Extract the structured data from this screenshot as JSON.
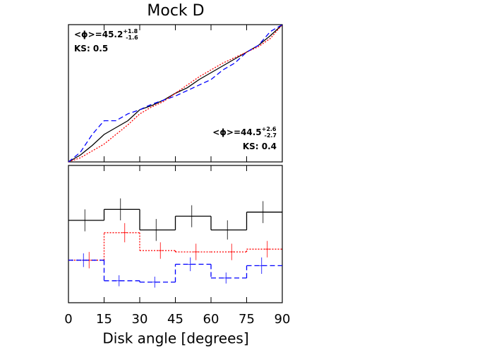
{
  "chart_data": [
    {
      "type": "line",
      "title": "Mock D",
      "x": [
        0,
        5,
        10,
        15,
        20,
        25,
        30,
        35,
        40,
        45,
        50,
        55,
        60,
        65,
        70,
        75,
        80,
        85,
        90
      ],
      "xlim": [
        0,
        90
      ],
      "ylim": [
        0,
        1
      ],
      "series": [
        {
          "color": "#000000",
          "linestyle": "solid",
          "values": [
            0,
            0.05,
            0.12,
            0.2,
            0.25,
            0.3,
            0.38,
            0.41,
            0.45,
            0.5,
            0.54,
            0.6,
            0.65,
            0.7,
            0.75,
            0.8,
            0.85,
            0.92,
            1
          ]
        },
        {
          "color": "#ff0000",
          "linestyle": "dotted",
          "values": [
            0,
            0.03,
            0.08,
            0.13,
            0.2,
            0.27,
            0.35,
            0.4,
            0.44,
            0.5,
            0.56,
            0.62,
            0.67,
            0.72,
            0.76,
            0.8,
            0.84,
            0.9,
            1
          ]
        },
        {
          "color": "#0000ff",
          "linestyle": "dashed",
          "values": [
            0,
            0.07,
            0.2,
            0.3,
            0.3,
            0.35,
            0.38,
            0.42,
            0.45,
            0.48,
            0.52,
            0.56,
            0.6,
            0.67,
            0.72,
            0.8,
            0.85,
            0.95,
            1
          ]
        }
      ],
      "annotations": [
        {
          "text": "<ϕ>=45.2",
          "sup": "+1.8",
          "sub": "-1.6",
          "corner": "top-left"
        },
        {
          "text": "KS: 0.5",
          "corner": "top-left"
        },
        {
          "text": "<ϕ>=44.5",
          "sup": "+2.6",
          "sub": "-2.7",
          "corner": "bottom-right"
        },
        {
          "text": "KS: 0.4",
          "corner": "bottom-right"
        }
      ]
    },
    {
      "type": "histogram",
      "xlabel": "Disk angle [degrees]",
      "bins": [
        0,
        15,
        30,
        45,
        60,
        75,
        90
      ],
      "xlim": [
        0,
        90
      ],
      "xticks": [
        0,
        15,
        30,
        45,
        60,
        75,
        90
      ],
      "ylim": [
        0,
        1
      ],
      "series": [
        {
          "color": "#000000",
          "linestyle": "solid",
          "values": [
            0.6,
            0.68,
            0.53,
            0.63,
            0.53,
            0.66
          ],
          "errors": [
            0.08,
            0.08,
            0.08,
            0.08,
            0.07,
            0.08
          ]
        },
        {
          "color": "#ff0000",
          "linestyle": "dotted",
          "values": [
            0.31,
            0.51,
            0.38,
            0.37,
            0.37,
            0.39
          ],
          "errors": [
            0.06,
            0.07,
            0.06,
            0.06,
            0.06,
            0.06
          ]
        },
        {
          "color": "#0000ff",
          "linestyle": "dashed",
          "values": [
            0.31,
            0.16,
            0.15,
            0.28,
            0.18,
            0.27
          ],
          "errors": [
            0.05,
            0.04,
            0.04,
            0.05,
            0.04,
            0.06
          ]
        }
      ]
    }
  ]
}
